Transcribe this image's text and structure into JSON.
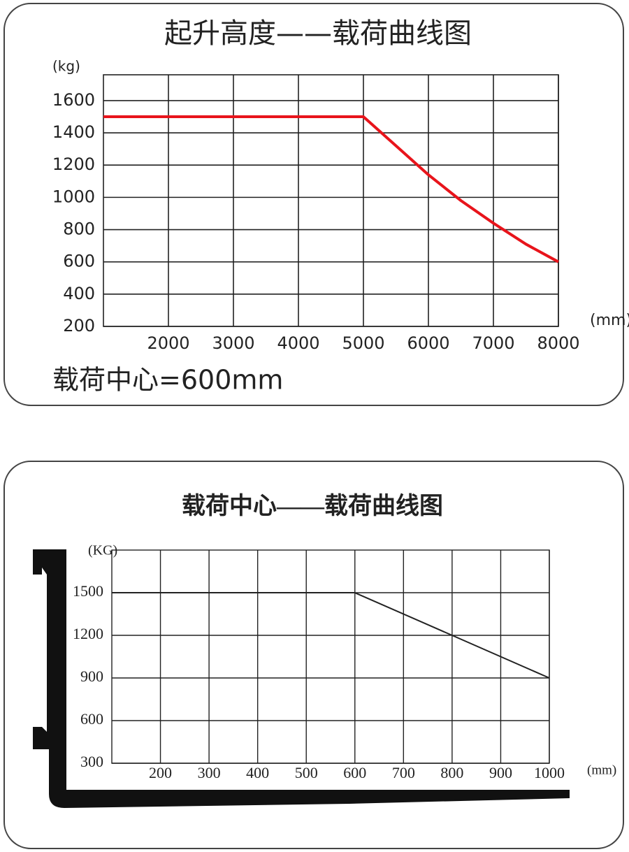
{
  "chart_data": [
    {
      "type": "line",
      "title": "起升高度——载荷曲线图",
      "ylabel": "(kg)",
      "xlabel": "(mm)",
      "annotation": "载荷中心=600mm",
      "x": [
        1000,
        5000,
        5500,
        6000,
        6500,
        7000,
        7500,
        8000
      ],
      "series": [
        {
          "color": "#e8141b",
          "values": [
            1500,
            1500,
            1320,
            1140,
            980,
            840,
            710,
            600
          ]
        }
      ],
      "xlim": [
        1000,
        8000
      ],
      "xticks": [
        2000,
        3000,
        4000,
        5000,
        6000,
        7000,
        8000
      ],
      "ylim": [
        200,
        1760
      ],
      "yticks": [
        200,
        400,
        600,
        800,
        1000,
        1200,
        1400,
        1600
      ],
      "grid": true
    },
    {
      "type": "line",
      "title": "载荷中心——载荷曲线图",
      "ylabel": "(KG)",
      "xlabel": "(mm)",
      "x": [
        100,
        600,
        800,
        1000
      ],
      "series": [
        {
          "color": "#222222",
          "values": [
            1500,
            1500,
            1200,
            900
          ]
        }
      ],
      "xlim": [
        100,
        1000
      ],
      "xticks": [
        200,
        300,
        400,
        500,
        600,
        700,
        800,
        900,
        1000
      ],
      "ylim": [
        300,
        1800
      ],
      "yticks": [
        300,
        600,
        900,
        1200,
        1500
      ],
      "grid": true
    }
  ]
}
